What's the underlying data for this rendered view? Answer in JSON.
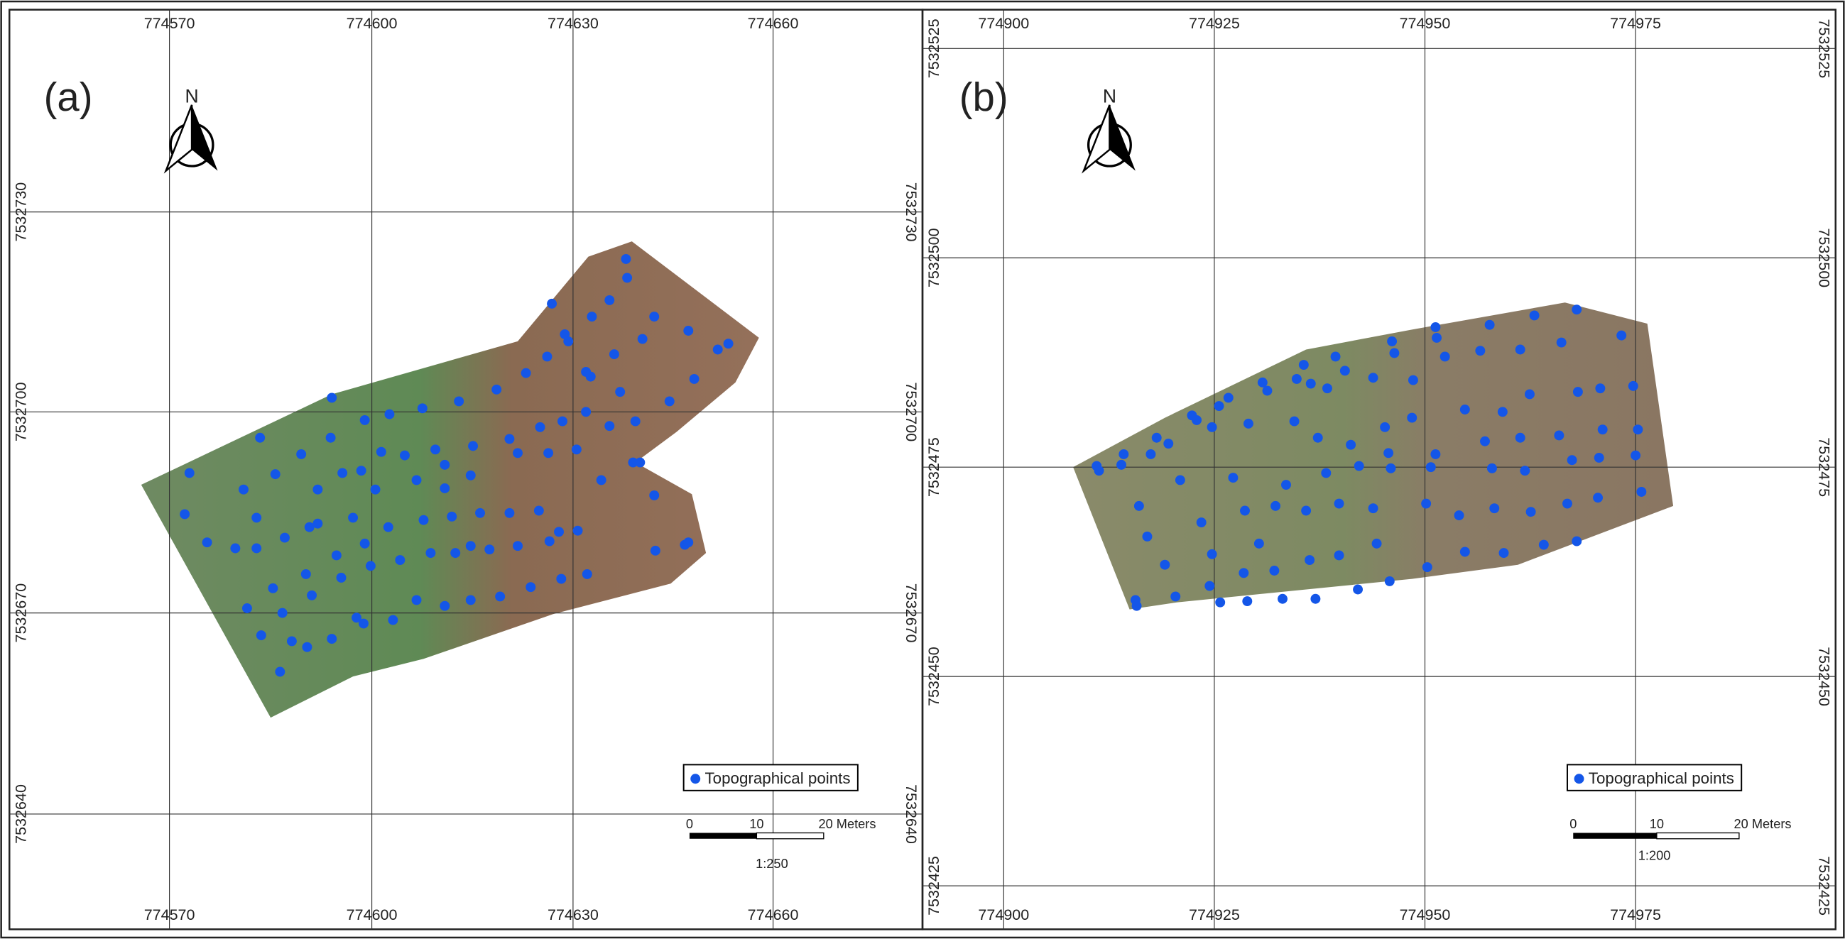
{
  "panels": [
    {
      "label": "(a)",
      "north": "N",
      "x_labels_top": [
        "774570",
        "774600",
        "774630",
        "774660"
      ],
      "x_labels_bottom": [
        "774570",
        "774600",
        "774630",
        "774660"
      ],
      "y_labels_left": [
        "7532730",
        "7532700",
        "7532670",
        "7532640"
      ],
      "y_labels_right": [
        "7532730",
        "7532700",
        "7532670",
        "7532640"
      ],
      "legend": "Topographical points",
      "scale_bar": {
        "labels": [
          "0",
          "10",
          "20 Meters"
        ],
        "ratio": "1:250"
      }
    },
    {
      "label": "(b)",
      "north": "N",
      "x_labels_top": [
        "774900",
        "774925",
        "774950",
        "774975"
      ],
      "x_labels_bottom": [
        "774900",
        "774925",
        "774950",
        "774975"
      ],
      "y_labels_left": [
        "7532525",
        "7532500",
        "7532475",
        "7532450",
        "7532425"
      ],
      "y_labels_right": [
        "7532525",
        "7532500",
        "7532475",
        "7532450",
        "7532425"
      ],
      "legend": "Topographical points",
      "scale_bar": {
        "labels": [
          "0",
          "10",
          "20 Meters"
        ],
        "ratio": "1:200"
      }
    }
  ]
}
